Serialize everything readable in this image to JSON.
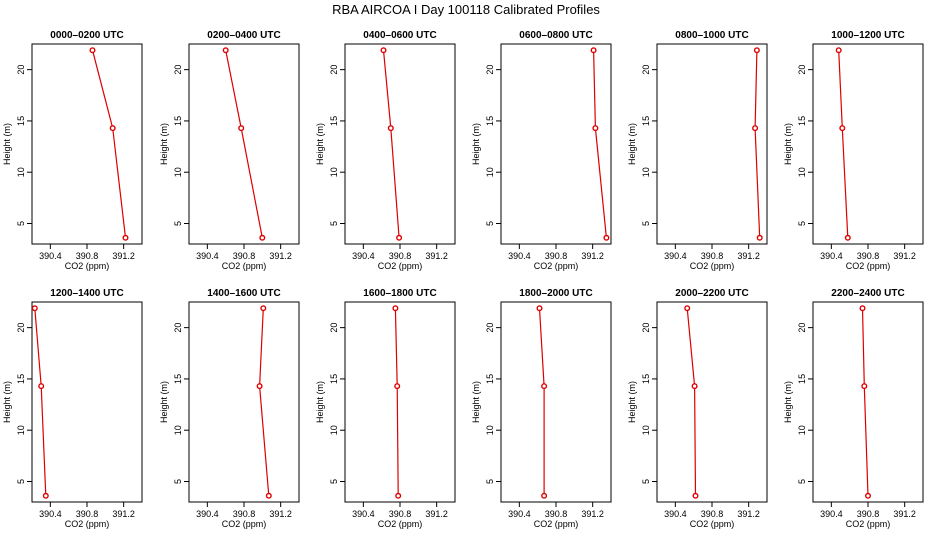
{
  "chart_data": {
    "type": "line",
    "title": "RBA AIRCOA I  Day 100118  Calibrated Profiles",
    "xlabel": "CO2 (ppm)",
    "ylabel": "Height (m)",
    "xlim": [
      390.2,
      391.4
    ],
    "ylim": [
      3.0,
      22.5
    ],
    "x_ticks": [
      390.4,
      390.8,
      391.2
    ],
    "x_tick_labels": [
      "390.4",
      "390.8",
      "391.2"
    ],
    "y_ticks": [
      5,
      10,
      15,
      20
    ],
    "y_tick_labels": [
      "5",
      "10",
      "15",
      "20"
    ],
    "heights": [
      3.6,
      14.3,
      21.9
    ],
    "line_color": "#dd0000",
    "panels": [
      {
        "title": "0000–0200 UTC",
        "co2": [
          391.22,
          391.08,
          390.86
        ]
      },
      {
        "title": "0200–0400 UTC",
        "co2": [
          391.0,
          390.77,
          390.6
        ]
      },
      {
        "title": "0400–0600 UTC",
        "co2": [
          390.79,
          390.7,
          390.62
        ]
      },
      {
        "title": "0600–0800 UTC",
        "co2": [
          391.35,
          391.23,
          391.21
        ]
      },
      {
        "title": "0800–1000 UTC",
        "co2": [
          391.32,
          391.27,
          391.29
        ]
      },
      {
        "title": "1000–1200 UTC",
        "co2": [
          390.58,
          390.52,
          390.48
        ]
      },
      {
        "title": "1200–1400 UTC",
        "co2": [
          390.35,
          390.3,
          390.23
        ]
      },
      {
        "title": "1400–1600 UTC",
        "co2": [
          391.07,
          390.97,
          391.01
        ]
      },
      {
        "title": "1600–1800 UTC",
        "co2": [
          390.78,
          390.77,
          390.75
        ]
      },
      {
        "title": "1800–2000 UTC",
        "co2": [
          390.67,
          390.67,
          390.62
        ]
      },
      {
        "title": "2000–2200 UTC",
        "co2": [
          390.62,
          390.61,
          390.53
        ]
      },
      {
        "title": "2200–2400 UTC",
        "co2": [
          390.8,
          390.76,
          390.74
        ]
      }
    ]
  }
}
